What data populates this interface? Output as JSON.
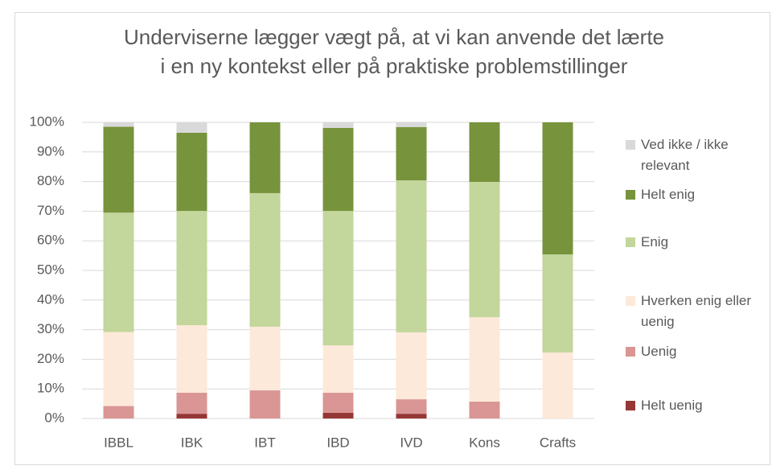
{
  "chart_data": {
    "type": "stacked_bar",
    "title": [
      "Underviserne lægger vægt på, at vi kan anvende det lærte",
      "i en ny kontekst eller på praktiske problemstillinger"
    ],
    "categories": [
      "IBBL",
      "IBK",
      "IBT",
      "IBD",
      "IVD",
      "Kons",
      "Crafts"
    ],
    "series": [
      {
        "name": "Helt uenig",
        "color": "#953735",
        "values": [
          0,
          1.6,
          0,
          1.9,
          1.6,
          0,
          0
        ]
      },
      {
        "name": "Uenig",
        "color": "#d99694",
        "values": [
          4.2,
          7.1,
          9.5,
          6.8,
          4.9,
          5.7,
          0
        ]
      },
      {
        "name": "Hverken enig eller uenig",
        "color": "#fde9d9",
        "values": [
          25,
          22.8,
          21.5,
          16,
          22.6,
          28.5,
          22.3
        ]
      },
      {
        "name": "Enig",
        "color": "#c3d69b",
        "values": [
          40.3,
          38.6,
          45.1,
          45.4,
          51.3,
          45.7,
          33.1
        ]
      },
      {
        "name": "Helt enig",
        "color": "#77933c",
        "values": [
          29,
          26.4,
          23.9,
          28,
          18,
          20.1,
          44.6
        ]
      },
      {
        "name": "Ved ikke / ikke relevant",
        "color": "#d9d9d9",
        "values": [
          1.5,
          3.5,
          0,
          1.9,
          1.6,
          0,
          0
        ]
      }
    ],
    "ylim": [
      0,
      100
    ],
    "yticks": [
      {
        "value": 0,
        "label": "0%"
      },
      {
        "value": 10,
        "label": "10%"
      },
      {
        "value": 20,
        "label": "20%"
      },
      {
        "value": 30,
        "label": "30%"
      },
      {
        "value": 40,
        "label": "40%"
      },
      {
        "value": 50,
        "label": "50%"
      },
      {
        "value": 60,
        "label": "60%"
      },
      {
        "value": 70,
        "label": "70%"
      },
      {
        "value": 80,
        "label": "80%"
      },
      {
        "value": 90,
        "label": "90%"
      },
      {
        "value": 100,
        "label": "100%"
      }
    ],
    "grid": true,
    "legend": "right"
  }
}
